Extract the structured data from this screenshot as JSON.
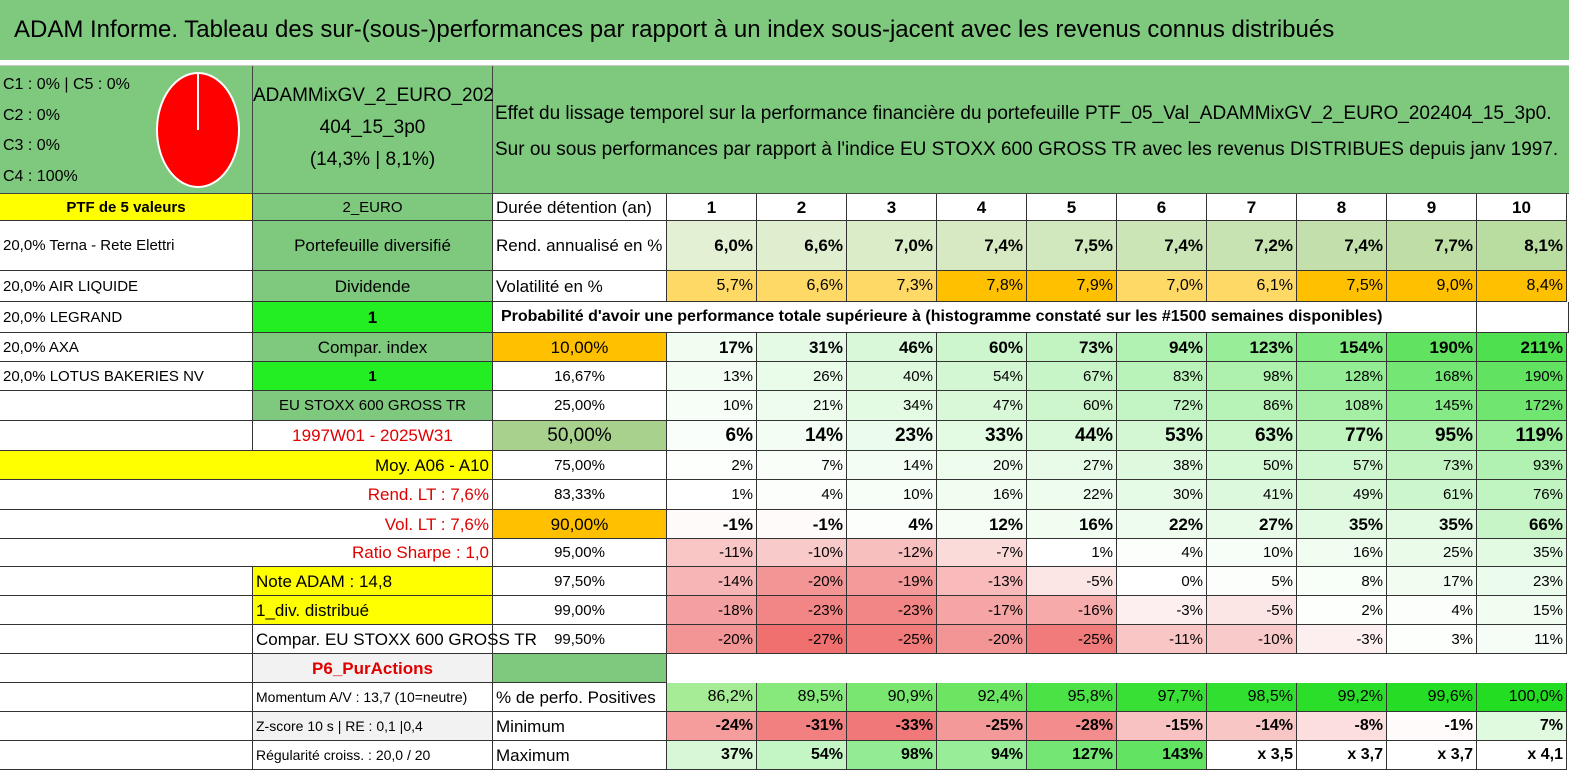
{
  "title": "ADAM Informe. Tableau des sur-(sous-)performances par rapport à un index sous-jacent avec les revenus connus distribués",
  "pie": {
    "lines": [
      "C1 : 0% | C5 : 0%",
      "C2 : 0%",
      "C3 : 0%",
      "C4 : 100%"
    ],
    "values": {
      "C1": 0,
      "C2": 0,
      "C3": 0,
      "C4": 100,
      "C5": 0
    },
    "color": "#ff0000"
  },
  "fund": {
    "line1": "ADAMMixGV_2_EURO_202",
    "line2": "404_15_3p0",
    "line3": "(14,3% | 8,1%)"
  },
  "description": "Effet du lissage temporel sur la performance financière du portefeuille PTF_05_Val_ADAMMixGV_2_EURO_202404_15_3p0. Sur ou sous performances par rapport à l'indice EU STOXX 600 GROSS TR avec les revenus DISTRIBUES depuis janv 1997.",
  "left": {
    "header": "PTF de 5 valeurs",
    "holdings": [
      "20,0% Terna - Rete Elettri",
      "20,0% AIR LIQUIDE",
      "20,0% LEGRAND",
      "20,0% AXA",
      "20,0% LOTUS BAKERIES NV"
    ],
    "moy": "Moy. A06 - A10",
    "rend_lt": "Rend. LT : 7,6%",
    "vol_lt": "Vol. LT : 7,6%",
    "sharpe": "Ratio Sharpe : 1,0",
    "note": "Note ADAM : 14,8",
    "div": "1_div. distribué",
    "compar": "Compar. EU STOXX 600 GROSS TR"
  },
  "middle": {
    "currency": "2_EURO",
    "type": "Portefeuille diversifié",
    "dividend": "Dividende",
    "one_a": "1",
    "compar_index": "Compar. index",
    "one_b": "1",
    "index_name": "EU STOXX 600 GROSS TR",
    "period": "1997W01 - 2025W31",
    "strategy": "P6_PurActions",
    "momentum": "Momentum A/V : 13,7 (10=neutre)",
    "zscore": "Z-score 10 s | RE : 0,1 |0,4",
    "regularite": "Régularité croiss. : 20,0 / 20"
  },
  "table": {
    "duration_label": "Durée détention (an)",
    "years": [
      "1",
      "2",
      "3",
      "4",
      "5",
      "6",
      "7",
      "8",
      "9",
      "10"
    ],
    "rend_label": "Rend. annualisé en %",
    "rend": [
      "6,0%",
      "6,6%",
      "7,0%",
      "7,4%",
      "7,5%",
      "7,4%",
      "7,2%",
      "7,4%",
      "7,7%",
      "8,1%"
    ],
    "vol_label": "Volatilité en %",
    "vol": [
      "5,7%",
      "6,6%",
      "7,3%",
      "7,8%",
      "7,9%",
      "7,0%",
      "6,1%",
      "7,5%",
      "9,0%",
      "8,4%"
    ],
    "prob_title": "Probabilité d'avoir une performance totale supérieure à (histogramme constaté sur les #1500 semaines disponibles)",
    "prob_rows": [
      {
        "p": "10,00%",
        "v": [
          "17%",
          "31%",
          "46%",
          "60%",
          "73%",
          "94%",
          "123%",
          "154%",
          "190%",
          "211%"
        ]
      },
      {
        "p": "16,67%",
        "v": [
          "13%",
          "26%",
          "40%",
          "54%",
          "67%",
          "83%",
          "98%",
          "128%",
          "168%",
          "190%"
        ]
      },
      {
        "p": "25,00%",
        "v": [
          "10%",
          "21%",
          "34%",
          "47%",
          "60%",
          "72%",
          "86%",
          "108%",
          "145%",
          "172%"
        ]
      },
      {
        "p": "50,00%",
        "v": [
          "6%",
          "14%",
          "23%",
          "33%",
          "44%",
          "53%",
          "63%",
          "77%",
          "95%",
          "119%"
        ]
      },
      {
        "p": "75,00%",
        "v": [
          "2%",
          "7%",
          "14%",
          "20%",
          "27%",
          "38%",
          "50%",
          "57%",
          "73%",
          "93%"
        ]
      },
      {
        "p": "83,33%",
        "v": [
          "1%",
          "4%",
          "10%",
          "16%",
          "22%",
          "30%",
          "41%",
          "49%",
          "61%",
          "76%"
        ]
      },
      {
        "p": "90,00%",
        "v": [
          "-1%",
          "-1%",
          "4%",
          "12%",
          "16%",
          "22%",
          "27%",
          "35%",
          "35%",
          "66%"
        ]
      },
      {
        "p": "95,00%",
        "v": [
          "-11%",
          "-10%",
          "-12%",
          "-7%",
          "1%",
          "4%",
          "10%",
          "16%",
          "25%",
          "35%"
        ]
      },
      {
        "p": "97,50%",
        "v": [
          "-14%",
          "-20%",
          "-19%",
          "-13%",
          "-5%",
          "0%",
          "5%",
          "8%",
          "17%",
          "23%"
        ]
      },
      {
        "p": "99,00%",
        "v": [
          "-18%",
          "-23%",
          "-23%",
          "-17%",
          "-16%",
          "-3%",
          "-5%",
          "2%",
          "4%",
          "15%"
        ]
      },
      {
        "p": "99,50%",
        "v": [
          "-20%",
          "-27%",
          "-25%",
          "-20%",
          "-25%",
          "-11%",
          "-10%",
          "-3%",
          "3%",
          "11%"
        ]
      }
    ],
    "pos_label": "% de perfo. Positives",
    "pos": [
      "86,2%",
      "89,5%",
      "90,9%",
      "92,4%",
      "95,8%",
      "97,7%",
      "98,5%",
      "99,2%",
      "99,6%",
      "100,0%"
    ],
    "min_label": "Minimum",
    "min": [
      "-24%",
      "-31%",
      "-33%",
      "-25%",
      "-28%",
      "-15%",
      "-14%",
      "-8%",
      "-1%",
      "7%"
    ],
    "max_label": "Maximum",
    "max": [
      "37%",
      "54%",
      "98%",
      "94%",
      "127%",
      "143%",
      "x 3,5",
      "x 3,7",
      "x 3,7",
      "x 4,1"
    ]
  },
  "colors": {
    "header_green": "#7fc97f",
    "yellow": "#ffff00",
    "bright_green": "#22ee22",
    "orange": "#ffc000",
    "red_text": "#e00000"
  }
}
